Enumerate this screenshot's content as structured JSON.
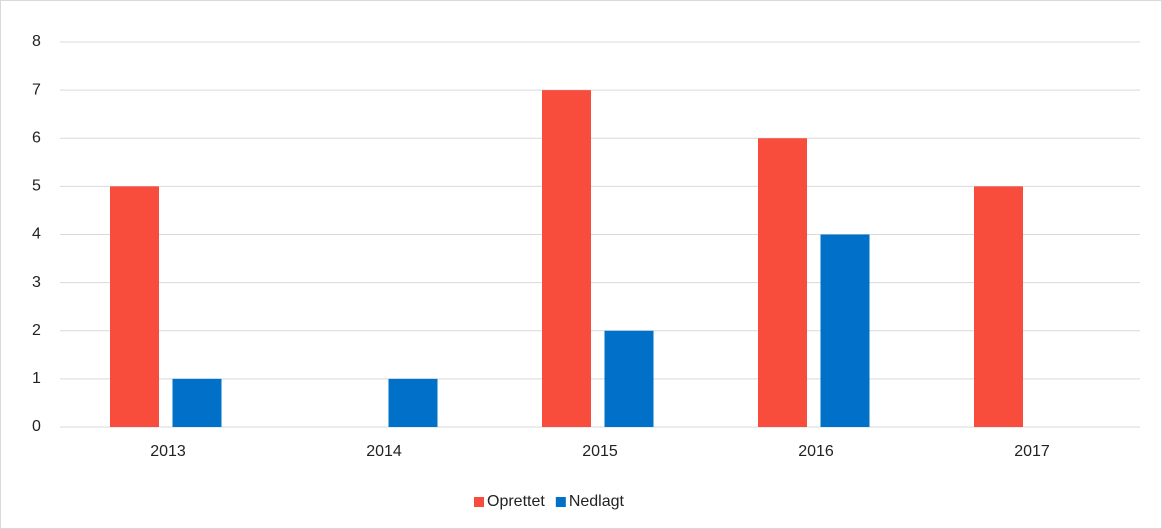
{
  "chart_data": {
    "type": "bar",
    "categories": [
      "2013",
      "2014",
      "2015",
      "2016",
      "2017"
    ],
    "series": [
      {
        "name": "Oprettet",
        "color": "#f84c3c",
        "values": [
          5,
          0,
          7,
          6,
          5
        ]
      },
      {
        "name": "Nedlagt",
        "color": "#0070c8",
        "values": [
          1,
          1,
          2,
          4,
          0
        ]
      }
    ],
    "ylim": [
      0,
      8
    ],
    "yticks": [
      0,
      1,
      2,
      3,
      4,
      5,
      6,
      7,
      8
    ],
    "grid": true,
    "legend": "bottom"
  }
}
